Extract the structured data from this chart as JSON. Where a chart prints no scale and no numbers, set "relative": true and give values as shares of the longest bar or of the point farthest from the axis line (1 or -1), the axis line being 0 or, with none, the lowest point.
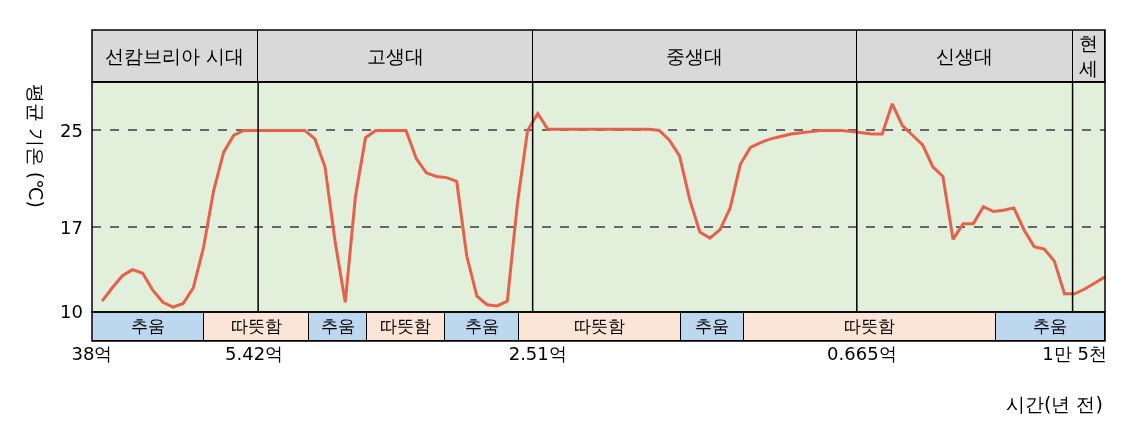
{
  "chart_data": [
    {
      "type": "bar",
      "orientation": "horizontal",
      "stacked": true,
      "relative": true,
      "categories": [
        null
      ],
      "series": [
        {
          "name": "선캄브리아 시대",
          "color": "#d9d9d9",
          "values": [
            0.164
          ]
        },
        {
          "name": "고생대",
          "color": "#d9d9d9",
          "values": [
            0.271
          ]
        },
        {
          "name": "중생대",
          "color": "#d9d9d9",
          "values": [
            0.32
          ]
        },
        {
          "name": "신생대",
          "color": "#d9d9d9",
          "values": [
            0.213
          ]
        },
        {
          "name": "현\n세",
          "color": "#d9d9d9",
          "values": [
            0.032
          ]
        }
      ]
    },
    {
      "type": "line",
      "xlabel": "시간(년 전)",
      "ylabel": "평균 기온 (℃)",
      "categories": [
        "38억",
        null,
        null,
        null,
        null,
        null,
        null,
        null,
        null,
        null,
        null,
        null,
        null,
        null,
        null,
        null,
        "5.42억",
        null,
        null,
        null,
        null,
        null,
        null,
        null,
        null,
        null,
        null,
        null,
        null,
        null,
        null,
        null,
        null,
        null,
        null,
        null,
        null,
        null,
        null,
        null,
        null,
        null,
        null,
        null,
        "2.51억",
        null,
        null,
        null,
        null,
        null,
        null,
        null,
        null,
        null,
        null,
        null,
        null,
        null,
        null,
        null,
        null,
        null,
        null,
        null,
        null,
        null,
        null,
        null,
        null,
        null,
        null,
        null,
        null,
        null,
        null,
        null,
        "0.665억",
        null,
        null,
        null,
        null,
        null,
        null,
        null,
        null,
        null,
        null,
        null,
        null,
        null,
        null,
        null,
        null,
        null,
        null,
        null,
        null,
        "1만 5천",
        null,
        null,
        null
      ],
      "ylim": [
        10,
        29
      ],
      "yticks": [
        10,
        17,
        25
      ],
      "grid": "y",
      "series": [
        {
          "color": "#e8604c",
          "values": [
            null,
            10.9,
            12.0,
            13.0,
            13.5,
            13.2,
            11.8,
            10.8,
            10.4,
            10.7,
            12.0,
            15.3,
            20.0,
            23.2,
            24.6,
            25,
            25,
            25,
            25,
            25,
            25,
            25,
            24.3,
            22.0,
            15.8,
            10.8,
            19.5,
            24.4,
            25,
            25,
            25,
            25,
            22.7,
            21.5,
            21.2,
            21.1,
            20.8,
            14.6,
            11.3,
            10.6,
            10.5,
            10.9,
            19.0,
            25.0,
            26.4,
            25.1,
            25.1,
            25.1,
            25.1,
            25.1,
            25.1,
            25.1,
            25.1,
            25.1,
            25.1,
            25.1,
            25.0,
            24.2,
            22.9,
            19.3,
            16.6,
            16.1,
            16.8,
            18.6,
            22.2,
            23.6,
            24.0,
            24.3,
            24.5,
            24.7,
            24.8,
            24.9,
            25.0,
            25.0,
            25.0,
            24.9,
            24.8,
            24.7,
            24.7,
            27.2,
            25.4,
            24.6,
            23.8,
            22.0,
            21.2,
            16.0,
            17.3,
            17.3,
            18.7,
            18.3,
            18.4,
            18.6,
            16.8,
            15.4,
            15.2,
            14.2,
            11.5,
            11.5,
            11.9,
            12.4,
            12.9
          ]
        }
      ]
    },
    {
      "type": "bar",
      "orientation": "horizontal",
      "stacked": true,
      "relative": true,
      "categories": [
        null
      ],
      "series": [
        {
          "name": "추움",
          "color": "#bdd7ee",
          "values": [
            0.1106
          ]
        },
        {
          "name": "따뜻함",
          "color": "#fbe5d6",
          "values": [
            0.1034
          ]
        },
        {
          "name": "추움",
          "color": "#bdd7ee",
          "values": [
            0.057
          ]
        },
        {
          "name": "따뜻함",
          "color": "#fbe5d6",
          "values": [
            0.077
          ]
        },
        {
          "name": "추움",
          "color": "#bdd7ee",
          "values": [
            0.074
          ]
        },
        {
          "name": "따뜻함",
          "color": "#fbe5d6",
          "values": [
            0.159
          ]
        },
        {
          "name": "추움",
          "color": "#bdd7ee",
          "values": [
            0.063
          ]
        },
        {
          "name": "따뜻함",
          "color": "#fbe5d6",
          "values": [
            0.248
          ]
        },
        {
          "name": "추움",
          "color": "#bdd7ee",
          "values": [
            0.108
          ]
        }
      ]
    }
  ]
}
